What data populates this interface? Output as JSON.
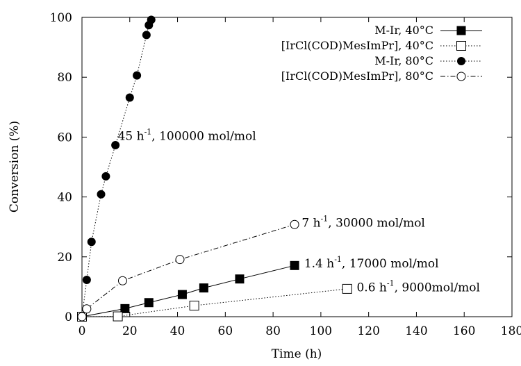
{
  "chart_data": {
    "type": "scatter",
    "xlabel": "Time (h)",
    "ylabel": "Conversion (%)",
    "xlim": [
      0,
      180
    ],
    "ylim": [
      0,
      100
    ],
    "xticks": [
      0,
      20,
      40,
      60,
      80,
      100,
      120,
      140,
      160,
      180
    ],
    "yticks": [
      0,
      20,
      40,
      60,
      80,
      100
    ],
    "grid": false,
    "legend_position": "top-right",
    "series": [
      {
        "name": "M-Ir, 40°C",
        "marker": "filled-square",
        "line": "solid",
        "points": [
          [
            0,
            0
          ],
          [
            18,
            2.7
          ],
          [
            28,
            4.7
          ],
          [
            42,
            7.4
          ],
          [
            51,
            9.6
          ],
          [
            66,
            12.6
          ],
          [
            89,
            17.1
          ]
        ]
      },
      {
        "name": "[IrCl(COD)MesImPr], 40°C",
        "marker": "open-square",
        "line": "dotted",
        "points": [
          [
            0,
            0
          ],
          [
            15,
            0.1
          ],
          [
            47,
            3.7
          ],
          [
            111,
            9.3
          ]
        ]
      },
      {
        "name": "M-Ir, 80°C",
        "marker": "filled-circle",
        "line": "dotted",
        "points": [
          [
            0,
            0
          ],
          [
            2,
            12.3
          ],
          [
            4,
            25
          ],
          [
            8,
            40.9
          ],
          [
            10,
            46.9
          ],
          [
            14,
            57.3
          ],
          [
            20,
            73.2
          ],
          [
            23,
            80.6
          ],
          [
            27,
            94.1
          ],
          [
            28,
            97.4
          ],
          [
            29,
            99.2
          ]
        ]
      },
      {
        "name": "[IrCl(COD)MesImPr], 80°C",
        "marker": "open-circle",
        "line": "dash-dot",
        "points": [
          [
            0,
            0
          ],
          [
            2,
            2.6
          ],
          [
            17,
            12
          ],
          [
            41,
            19.1
          ],
          [
            89,
            30.8
          ]
        ]
      }
    ],
    "annotations": [
      {
        "base": "45 h",
        "sup": "-1",
        "rest": ", 100000 mol/mol",
        "x": 15,
        "y": 59
      },
      {
        "base": "7 h",
        "sup": "-1",
        "rest": ", 30000 mol/mol",
        "x": 92,
        "y": 30
      },
      {
        "base": "1.4 h",
        "sup": "-1",
        "rest": ", 17000 mol/mol",
        "x": 93,
        "y": 16.5
      },
      {
        "base": "0.6 h",
        "sup": "-1",
        "rest": ", 9000mol/mol",
        "x": 115,
        "y": 8.5
      }
    ]
  }
}
